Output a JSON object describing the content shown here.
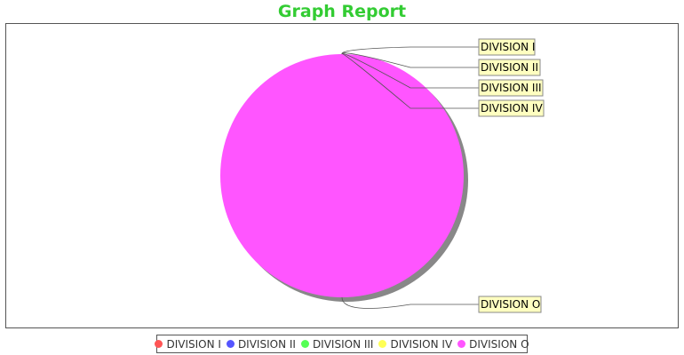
{
  "chart_data": {
    "type": "pie",
    "title": "Graph Report",
    "categories": [
      "DIVISION I",
      "DIVISION II",
      "DIVISION III",
      "DIVISION IV",
      "DIVISION O"
    ],
    "values": [
      0,
      0,
      0,
      0,
      100
    ],
    "colors": [
      "#ff5555",
      "#5555ff",
      "#55ff55",
      "#ffff55",
      "#ff55ff"
    ],
    "labels": [
      "DIVISION I",
      "DIVISION II",
      "DIVISION III",
      "DIVISION IV",
      "DIVISION O"
    ],
    "legend_position": "bottom",
    "shadow": true
  }
}
